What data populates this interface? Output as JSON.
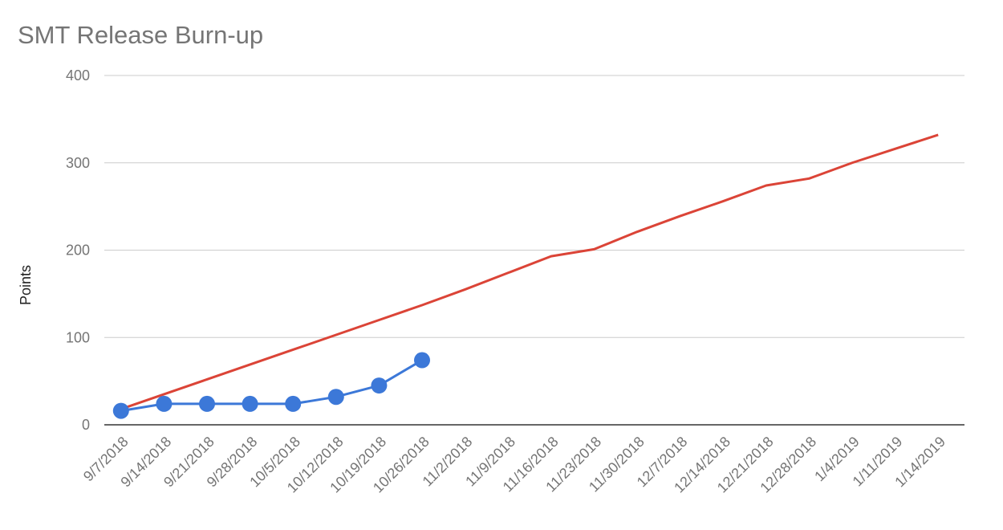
{
  "chart_data": {
    "type": "line",
    "title": "SMT Release Burn-up",
    "y_label": "Points",
    "categories": [
      "9/7/2018",
      "9/14/2018",
      "9/21/2018",
      "9/28/2018",
      "10/5/2018",
      "10/12/2018",
      "10/19/2018",
      "10/26/2018",
      "11/2/2018",
      "11/9/2018",
      "11/16/2018",
      "11/23/2018",
      "11/30/2018",
      "12/7/2018",
      "12/14/2018",
      "12/21/2018",
      "12/28/2018",
      "1/4/2019",
      "1/11/2019",
      "1/14/2019"
    ],
    "series": [
      {
        "color": "#db4437",
        "markers": false,
        "values": [
          18,
          35,
          52,
          69,
          86,
          103,
          120,
          137,
          155,
          174,
          193,
          201,
          221,
          239,
          256,
          274,
          282,
          300,
          316,
          332
        ]
      },
      {
        "color": "#3c78d8",
        "markers": true,
        "values": [
          16,
          24,
          24,
          24,
          24,
          32,
          45,
          74,
          null,
          null,
          null,
          null,
          null,
          null,
          null,
          null,
          null,
          null,
          null,
          null
        ]
      }
    ],
    "ylim": [
      0,
      400
    ],
    "yticks": [
      0,
      100,
      200,
      300,
      400
    ],
    "grid": true
  }
}
